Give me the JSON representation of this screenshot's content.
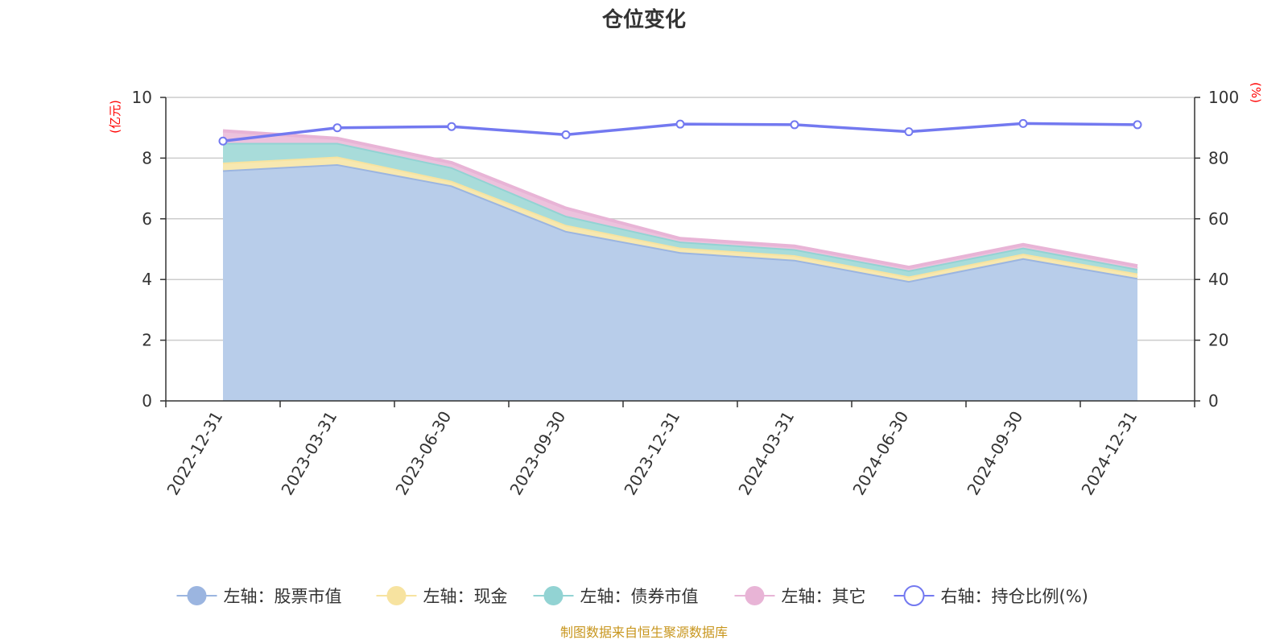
{
  "chart_data": {
    "type": "area",
    "title": "仓位变化",
    "left_unit": "(亿元)",
    "right_unit": "(%)",
    "categories": [
      "2022-12-31",
      "2023-03-31",
      "2023-06-30",
      "2023-09-30",
      "2023-12-31",
      "2024-03-31",
      "2024-06-30",
      "2024-09-30",
      "2024-12-31"
    ],
    "left_ylim": [
      0,
      10
    ],
    "left_ticks": [
      "0",
      "2",
      "4",
      "6",
      "8",
      "10"
    ],
    "right_ylim": [
      0,
      100
    ],
    "right_ticks": [
      "0",
      "20",
      "40",
      "60",
      "80",
      "100"
    ],
    "series": [
      {
        "name": "左轴：股票市值",
        "axis": "left",
        "stacked": true,
        "color": "#9bb5e0",
        "fill": "#b8cdea",
        "values": [
          7.6,
          7.8,
          7.1,
          5.6,
          4.9,
          4.65,
          3.95,
          4.7,
          4.05
        ]
      },
      {
        "name": "左轴：现金",
        "axis": "left",
        "stacked": true,
        "color": "#f7e3a0",
        "fill": "#f7e8b0",
        "values": [
          0.25,
          0.25,
          0.15,
          0.2,
          0.15,
          0.15,
          0.15,
          0.15,
          0.15
        ]
      },
      {
        "name": "左轴：债券市值",
        "axis": "left",
        "stacked": true,
        "color": "#92d3d3",
        "fill": "#a8dcda",
        "values": [
          0.65,
          0.45,
          0.45,
          0.3,
          0.2,
          0.2,
          0.2,
          0.2,
          0.15
        ]
      },
      {
        "name": "左轴：其它",
        "axis": "left",
        "stacked": true,
        "color": "#e8b4d6",
        "fill": "#ecc2dd",
        "values": [
          0.4,
          0.15,
          0.15,
          0.25,
          0.1,
          0.1,
          0.1,
          0.1,
          0.1
        ]
      },
      {
        "name": "右轴：持仓比例(%)",
        "axis": "right",
        "stacked": false,
        "color": "#7379f0",
        "fill": "none",
        "values": [
          85.6,
          90.0,
          90.4,
          87.7,
          91.2,
          91.0,
          88.7,
          91.4,
          91.0
        ]
      }
    ],
    "legend_position": "bottom-center",
    "grid": true
  },
  "source_text": "制图数据来自恒生聚源数据库"
}
